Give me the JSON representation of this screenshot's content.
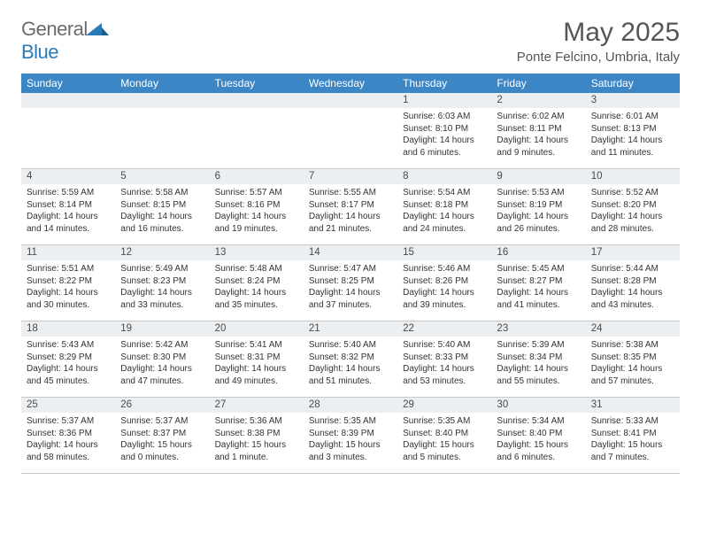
{
  "brand": {
    "word1": "General",
    "word2": "Blue"
  },
  "title": "May 2025",
  "location": "Ponte Felcino, Umbria, Italy",
  "colors": {
    "header_bg": "#3d86c6",
    "header_text": "#ffffff",
    "daynum_bg": "#eceff2",
    "border": "#c8c8c8",
    "brand_gray": "#6b6b6b",
    "brand_blue": "#2a7ab8"
  },
  "dayNames": [
    "Sunday",
    "Monday",
    "Tuesday",
    "Wednesday",
    "Thursday",
    "Friday",
    "Saturday"
  ],
  "weeks": [
    [
      {
        "n": "",
        "sr": "",
        "ss": "",
        "dl": ""
      },
      {
        "n": "",
        "sr": "",
        "ss": "",
        "dl": ""
      },
      {
        "n": "",
        "sr": "",
        "ss": "",
        "dl": ""
      },
      {
        "n": "",
        "sr": "",
        "ss": "",
        "dl": ""
      },
      {
        "n": "1",
        "sr": "Sunrise: 6:03 AM",
        "ss": "Sunset: 8:10 PM",
        "dl": "Daylight: 14 hours and 6 minutes."
      },
      {
        "n": "2",
        "sr": "Sunrise: 6:02 AM",
        "ss": "Sunset: 8:11 PM",
        "dl": "Daylight: 14 hours and 9 minutes."
      },
      {
        "n": "3",
        "sr": "Sunrise: 6:01 AM",
        "ss": "Sunset: 8:13 PM",
        "dl": "Daylight: 14 hours and 11 minutes."
      }
    ],
    [
      {
        "n": "4",
        "sr": "Sunrise: 5:59 AM",
        "ss": "Sunset: 8:14 PM",
        "dl": "Daylight: 14 hours and 14 minutes."
      },
      {
        "n": "5",
        "sr": "Sunrise: 5:58 AM",
        "ss": "Sunset: 8:15 PM",
        "dl": "Daylight: 14 hours and 16 minutes."
      },
      {
        "n": "6",
        "sr": "Sunrise: 5:57 AM",
        "ss": "Sunset: 8:16 PM",
        "dl": "Daylight: 14 hours and 19 minutes."
      },
      {
        "n": "7",
        "sr": "Sunrise: 5:55 AM",
        "ss": "Sunset: 8:17 PM",
        "dl": "Daylight: 14 hours and 21 minutes."
      },
      {
        "n": "8",
        "sr": "Sunrise: 5:54 AM",
        "ss": "Sunset: 8:18 PM",
        "dl": "Daylight: 14 hours and 24 minutes."
      },
      {
        "n": "9",
        "sr": "Sunrise: 5:53 AM",
        "ss": "Sunset: 8:19 PM",
        "dl": "Daylight: 14 hours and 26 minutes."
      },
      {
        "n": "10",
        "sr": "Sunrise: 5:52 AM",
        "ss": "Sunset: 8:20 PM",
        "dl": "Daylight: 14 hours and 28 minutes."
      }
    ],
    [
      {
        "n": "11",
        "sr": "Sunrise: 5:51 AM",
        "ss": "Sunset: 8:22 PM",
        "dl": "Daylight: 14 hours and 30 minutes."
      },
      {
        "n": "12",
        "sr": "Sunrise: 5:49 AM",
        "ss": "Sunset: 8:23 PM",
        "dl": "Daylight: 14 hours and 33 minutes."
      },
      {
        "n": "13",
        "sr": "Sunrise: 5:48 AM",
        "ss": "Sunset: 8:24 PM",
        "dl": "Daylight: 14 hours and 35 minutes."
      },
      {
        "n": "14",
        "sr": "Sunrise: 5:47 AM",
        "ss": "Sunset: 8:25 PM",
        "dl": "Daylight: 14 hours and 37 minutes."
      },
      {
        "n": "15",
        "sr": "Sunrise: 5:46 AM",
        "ss": "Sunset: 8:26 PM",
        "dl": "Daylight: 14 hours and 39 minutes."
      },
      {
        "n": "16",
        "sr": "Sunrise: 5:45 AM",
        "ss": "Sunset: 8:27 PM",
        "dl": "Daylight: 14 hours and 41 minutes."
      },
      {
        "n": "17",
        "sr": "Sunrise: 5:44 AM",
        "ss": "Sunset: 8:28 PM",
        "dl": "Daylight: 14 hours and 43 minutes."
      }
    ],
    [
      {
        "n": "18",
        "sr": "Sunrise: 5:43 AM",
        "ss": "Sunset: 8:29 PM",
        "dl": "Daylight: 14 hours and 45 minutes."
      },
      {
        "n": "19",
        "sr": "Sunrise: 5:42 AM",
        "ss": "Sunset: 8:30 PM",
        "dl": "Daylight: 14 hours and 47 minutes."
      },
      {
        "n": "20",
        "sr": "Sunrise: 5:41 AM",
        "ss": "Sunset: 8:31 PM",
        "dl": "Daylight: 14 hours and 49 minutes."
      },
      {
        "n": "21",
        "sr": "Sunrise: 5:40 AM",
        "ss": "Sunset: 8:32 PM",
        "dl": "Daylight: 14 hours and 51 minutes."
      },
      {
        "n": "22",
        "sr": "Sunrise: 5:40 AM",
        "ss": "Sunset: 8:33 PM",
        "dl": "Daylight: 14 hours and 53 minutes."
      },
      {
        "n": "23",
        "sr": "Sunrise: 5:39 AM",
        "ss": "Sunset: 8:34 PM",
        "dl": "Daylight: 14 hours and 55 minutes."
      },
      {
        "n": "24",
        "sr": "Sunrise: 5:38 AM",
        "ss": "Sunset: 8:35 PM",
        "dl": "Daylight: 14 hours and 57 minutes."
      }
    ],
    [
      {
        "n": "25",
        "sr": "Sunrise: 5:37 AM",
        "ss": "Sunset: 8:36 PM",
        "dl": "Daylight: 14 hours and 58 minutes."
      },
      {
        "n": "26",
        "sr": "Sunrise: 5:37 AM",
        "ss": "Sunset: 8:37 PM",
        "dl": "Daylight: 15 hours and 0 minutes."
      },
      {
        "n": "27",
        "sr": "Sunrise: 5:36 AM",
        "ss": "Sunset: 8:38 PM",
        "dl": "Daylight: 15 hours and 1 minute."
      },
      {
        "n": "28",
        "sr": "Sunrise: 5:35 AM",
        "ss": "Sunset: 8:39 PM",
        "dl": "Daylight: 15 hours and 3 minutes."
      },
      {
        "n": "29",
        "sr": "Sunrise: 5:35 AM",
        "ss": "Sunset: 8:40 PM",
        "dl": "Daylight: 15 hours and 5 minutes."
      },
      {
        "n": "30",
        "sr": "Sunrise: 5:34 AM",
        "ss": "Sunset: 8:40 PM",
        "dl": "Daylight: 15 hours and 6 minutes."
      },
      {
        "n": "31",
        "sr": "Sunrise: 5:33 AM",
        "ss": "Sunset: 8:41 PM",
        "dl": "Daylight: 15 hours and 7 minutes."
      }
    ]
  ]
}
